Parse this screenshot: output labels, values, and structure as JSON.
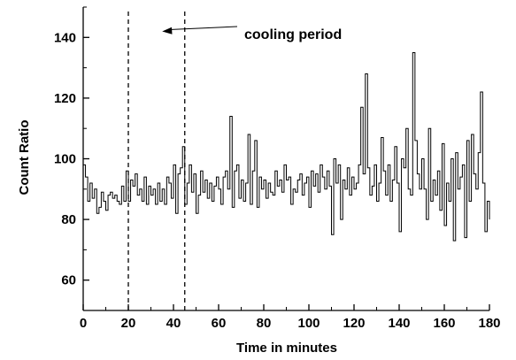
{
  "chart_data": {
    "type": "line",
    "style": "step",
    "xlabel": "Time in minutes",
    "ylabel": "Count Ratio",
    "xlim": [
      0,
      180
    ],
    "ylim": [
      50,
      150
    ],
    "xticks": [
      0,
      20,
      40,
      60,
      80,
      100,
      120,
      140,
      160,
      180
    ],
    "yticks": [
      60,
      80,
      100,
      120,
      140
    ],
    "grid": false,
    "vertical_lines": [
      20,
      45
    ],
    "annotation": {
      "text": "cooling period",
      "arrow_to": [
        35,
        142
      ]
    },
    "x": [
      0,
      1,
      2,
      3,
      4,
      5,
      6,
      7,
      8,
      9,
      10,
      11,
      12,
      13,
      14,
      15,
      16,
      17,
      18,
      19,
      20,
      21,
      22,
      23,
      24,
      25,
      26,
      27,
      28,
      29,
      30,
      31,
      32,
      33,
      34,
      35,
      36,
      37,
      38,
      39,
      40,
      41,
      42,
      43,
      44,
      45,
      46,
      47,
      48,
      49,
      50,
      51,
      52,
      53,
      54,
      55,
      56,
      57,
      58,
      59,
      60,
      61,
      62,
      63,
      64,
      65,
      66,
      67,
      68,
      69,
      70,
      71,
      72,
      73,
      74,
      75,
      76,
      77,
      78,
      79,
      80,
      81,
      82,
      83,
      84,
      85,
      86,
      87,
      88,
      89,
      90,
      91,
      92,
      93,
      94,
      95,
      96,
      97,
      98,
      99,
      100,
      101,
      102,
      103,
      104,
      105,
      106,
      107,
      108,
      109,
      110,
      111,
      112,
      113,
      114,
      115,
      116,
      117,
      118,
      119,
      120,
      121,
      122,
      123,
      124,
      125,
      126,
      127,
      128,
      129,
      130,
      131,
      132,
      133,
      134,
      135,
      136,
      137,
      138,
      139,
      140,
      141,
      142,
      143,
      144,
      145,
      146,
      147,
      148,
      149,
      150,
      151,
      152,
      153,
      154,
      155,
      156,
      157,
      158,
      159,
      160,
      161,
      162,
      163,
      164,
      165,
      166,
      167,
      168,
      169,
      170,
      171,
      172,
      173,
      174,
      175,
      176,
      177,
      178,
      179,
      180
    ],
    "values": [
      98,
      94,
      86,
      92,
      87,
      90,
      82,
      84,
      89,
      86,
      83,
      88,
      89,
      87,
      88,
      86,
      85,
      91,
      86,
      96,
      86,
      93,
      91,
      95,
      88,
      90,
      86,
      94,
      85,
      91,
      88,
      90,
      85,
      92,
      86,
      90,
      85,
      94,
      92,
      87,
      98,
      82,
      95,
      97,
      104,
      85,
      92,
      98,
      89,
      95,
      82,
      88,
      96,
      89,
      93,
      87,
      92,
      86,
      91,
      94,
      90,
      85,
      94,
      96,
      90,
      114,
      84,
      96,
      98,
      87,
      93,
      86,
      92,
      108,
      85,
      96,
      106,
      84,
      94,
      90,
      93,
      87,
      92,
      89,
      88,
      96,
      91,
      93,
      89,
      98,
      93,
      94,
      85,
      90,
      89,
      93,
      95,
      88,
      92,
      94,
      84,
      96,
      91,
      95,
      89,
      98,
      94,
      90,
      96,
      91,
      75,
      100,
      92,
      98,
      80,
      93,
      90,
      97,
      88,
      94,
      90,
      92,
      98,
      117,
      95,
      128,
      97,
      88,
      91,
      98,
      86,
      92,
      107,
      96,
      88,
      98,
      86,
      93,
      104,
      92,
      76,
      100,
      97,
      110,
      90,
      88,
      135,
      106,
      95,
      90,
      100,
      90,
      80,
      110,
      86,
      93,
      88,
      96,
      83,
      105,
      78,
      92,
      86,
      100,
      73,
      102,
      90,
      94,
      98,
      74,
      106,
      86,
      108,
      95,
      90,
      102,
      122,
      92,
      76,
      86,
      80
    ]
  }
}
